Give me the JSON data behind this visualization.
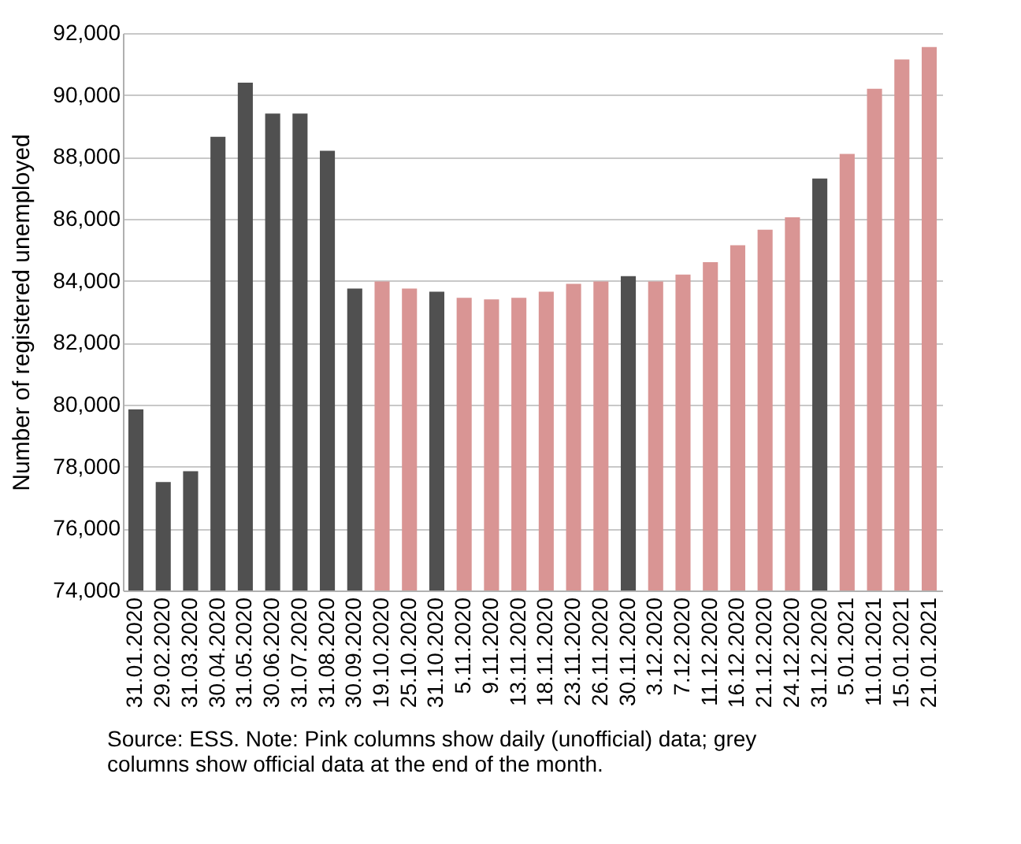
{
  "chart_data": {
    "type": "bar",
    "ylabel": "Number of registered unemployed",
    "categories": [
      "31.01.2020",
      "29.02.2020",
      "31.03.2020",
      "30.04.2020",
      "31.05.2020",
      "30.06.2020",
      "31.07.2020",
      "31.08.2020",
      "30.09.2020",
      "19.10.2020",
      "25.10.2020",
      "31.10.2020",
      "5.11.2020",
      "9.11.2020",
      "13.11.2020",
      "18.11.2020",
      "23.11.2020",
      "26.11.2020",
      "30.11.2020",
      "3.12.2020",
      "7.12.2020",
      "11.12.2020",
      "16.12.2020",
      "21.12.2020",
      "24.12.2020",
      "31.12.2020",
      "5.01.2021",
      "11.01.2021",
      "15.01.2021",
      "21.01.2021"
    ],
    "values": [
      79850,
      77500,
      77850,
      88650,
      90400,
      89400,
      89400,
      88200,
      83750,
      83980,
      83750,
      83650,
      83450,
      83400,
      83450,
      83650,
      83900,
      83980,
      84150,
      83980,
      84200,
      84600,
      85150,
      85650,
      86050,
      87300,
      88100,
      90200,
      91150,
      91550
    ],
    "colors": [
      "#505050",
      "#505050",
      "#505050",
      "#505050",
      "#505050",
      "#505050",
      "#505050",
      "#505050",
      "#505050",
      "#d99594",
      "#d99594",
      "#505050",
      "#d99594",
      "#d99594",
      "#d99594",
      "#d99594",
      "#d99594",
      "#d99594",
      "#505050",
      "#d99594",
      "#d99594",
      "#d99594",
      "#d99594",
      "#d99594",
      "#d99594",
      "#505050",
      "#d99594",
      "#d99594",
      "#d99594",
      "#d99594"
    ],
    "ylim": [
      74000,
      92000
    ],
    "yticks": [
      {
        "value": 74000,
        "label": "74,000"
      },
      {
        "value": 76000,
        "label": "76,000"
      },
      {
        "value": 78000,
        "label": "78,000"
      },
      {
        "value": 80000,
        "label": "80,000"
      },
      {
        "value": 82000,
        "label": "82,000"
      },
      {
        "value": 84000,
        "label": "84,000"
      },
      {
        "value": 86000,
        "label": "86,000"
      },
      {
        "value": 88000,
        "label": "88,000"
      },
      {
        "value": 90000,
        "label": "90,000"
      },
      {
        "value": 92000,
        "label": "92,000"
      }
    ],
    "grid": "y",
    "annotations": [
      "Source: ESS. Note: Pink columns show daily (unofficial) data; grey columns show official data at the end of the month."
    ]
  }
}
